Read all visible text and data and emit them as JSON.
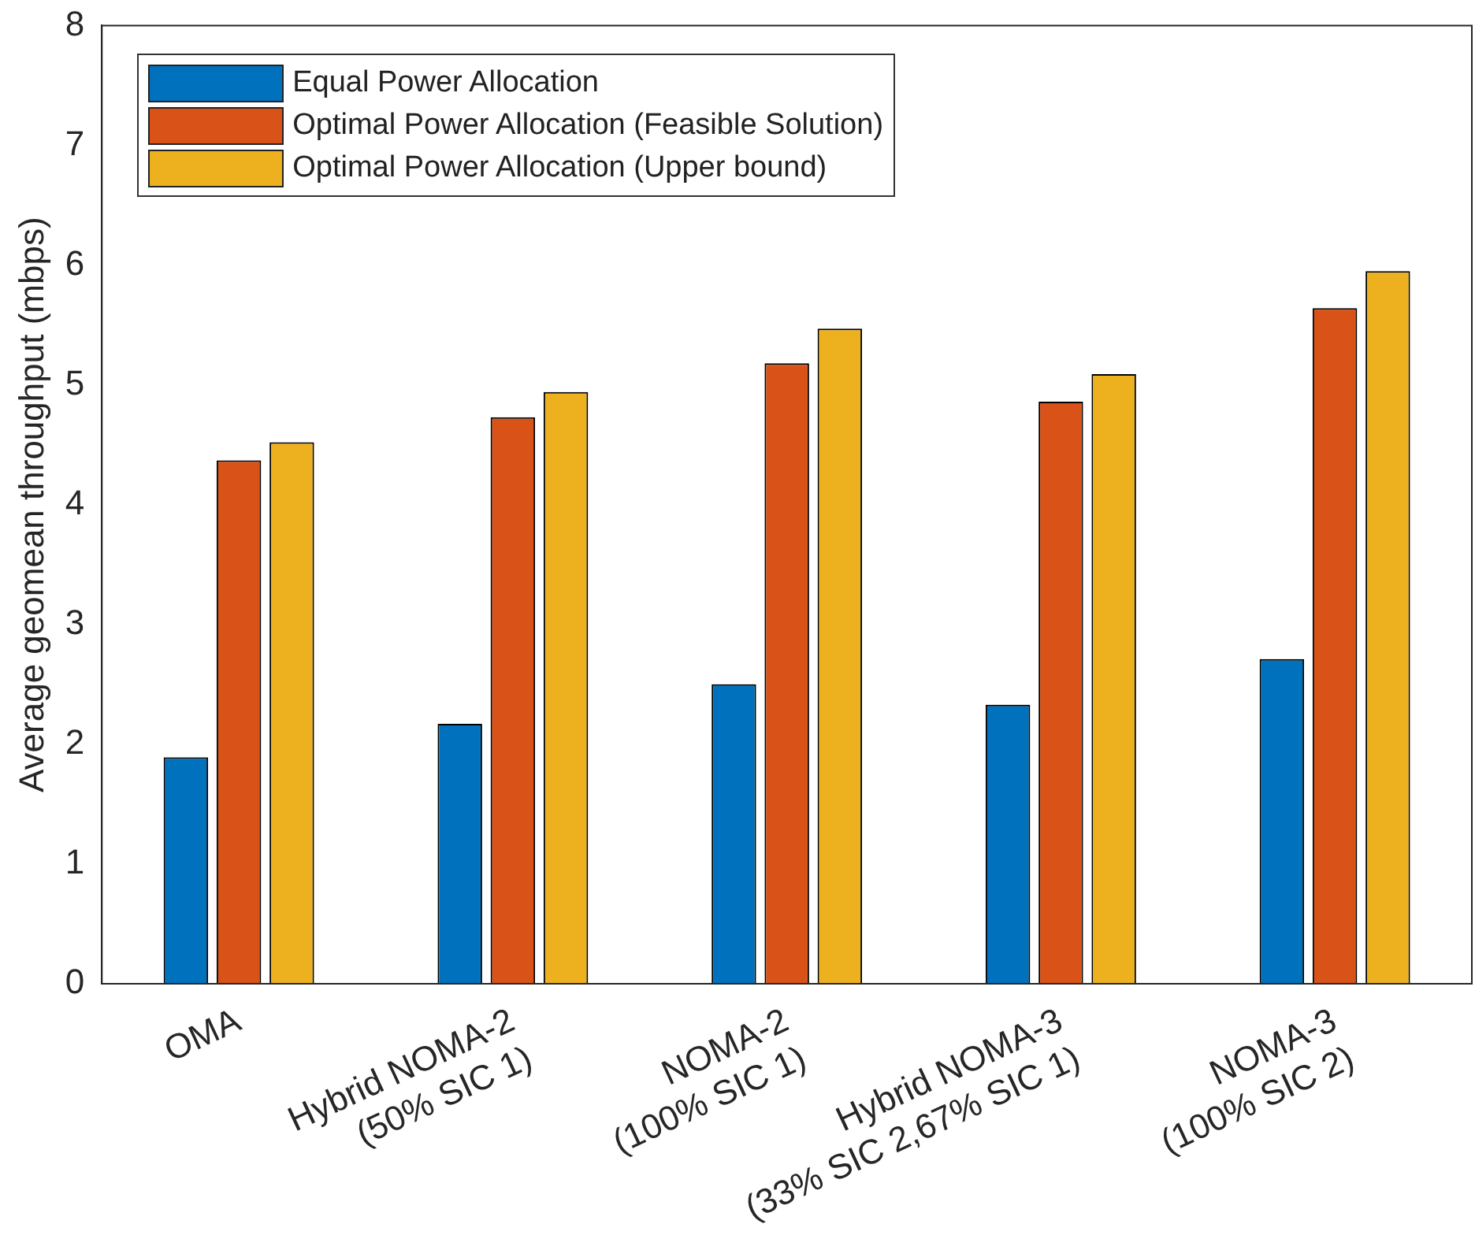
{
  "chart_data": {
    "type": "bar",
    "ylabel": "Average geomean throughput (mbps)",
    "categories": [
      "OMA",
      "Hybrid NOMA-2\n(50% SIC 1)",
      "NOMA-2\n(100% SIC 1)",
      "Hybrid NOMA-3\n(33% SIC 2,67% SIC 1)",
      "NOMA-3\n(100% SIC 2)"
    ],
    "series": [
      {
        "name": "Equal Power Allocation",
        "color": "#0072bd",
        "values": [
          1.89,
          2.17,
          2.5,
          2.33,
          2.71
        ]
      },
      {
        "name": "Optimal Power Allocation (Feasible Solution)",
        "color": "#d95319",
        "values": [
          4.37,
          4.73,
          5.18,
          4.86,
          5.64
        ]
      },
      {
        "name": "Optimal Power Allocation (Upper bound)",
        "color": "#edb120",
        "values": [
          4.52,
          4.94,
          5.47,
          5.09,
          5.95
        ]
      }
    ],
    "ylim": [
      0,
      8
    ],
    "yticks": [
      0,
      1,
      2,
      3,
      4,
      5,
      6,
      7,
      8
    ],
    "grid": false,
    "legend": "top left"
  }
}
